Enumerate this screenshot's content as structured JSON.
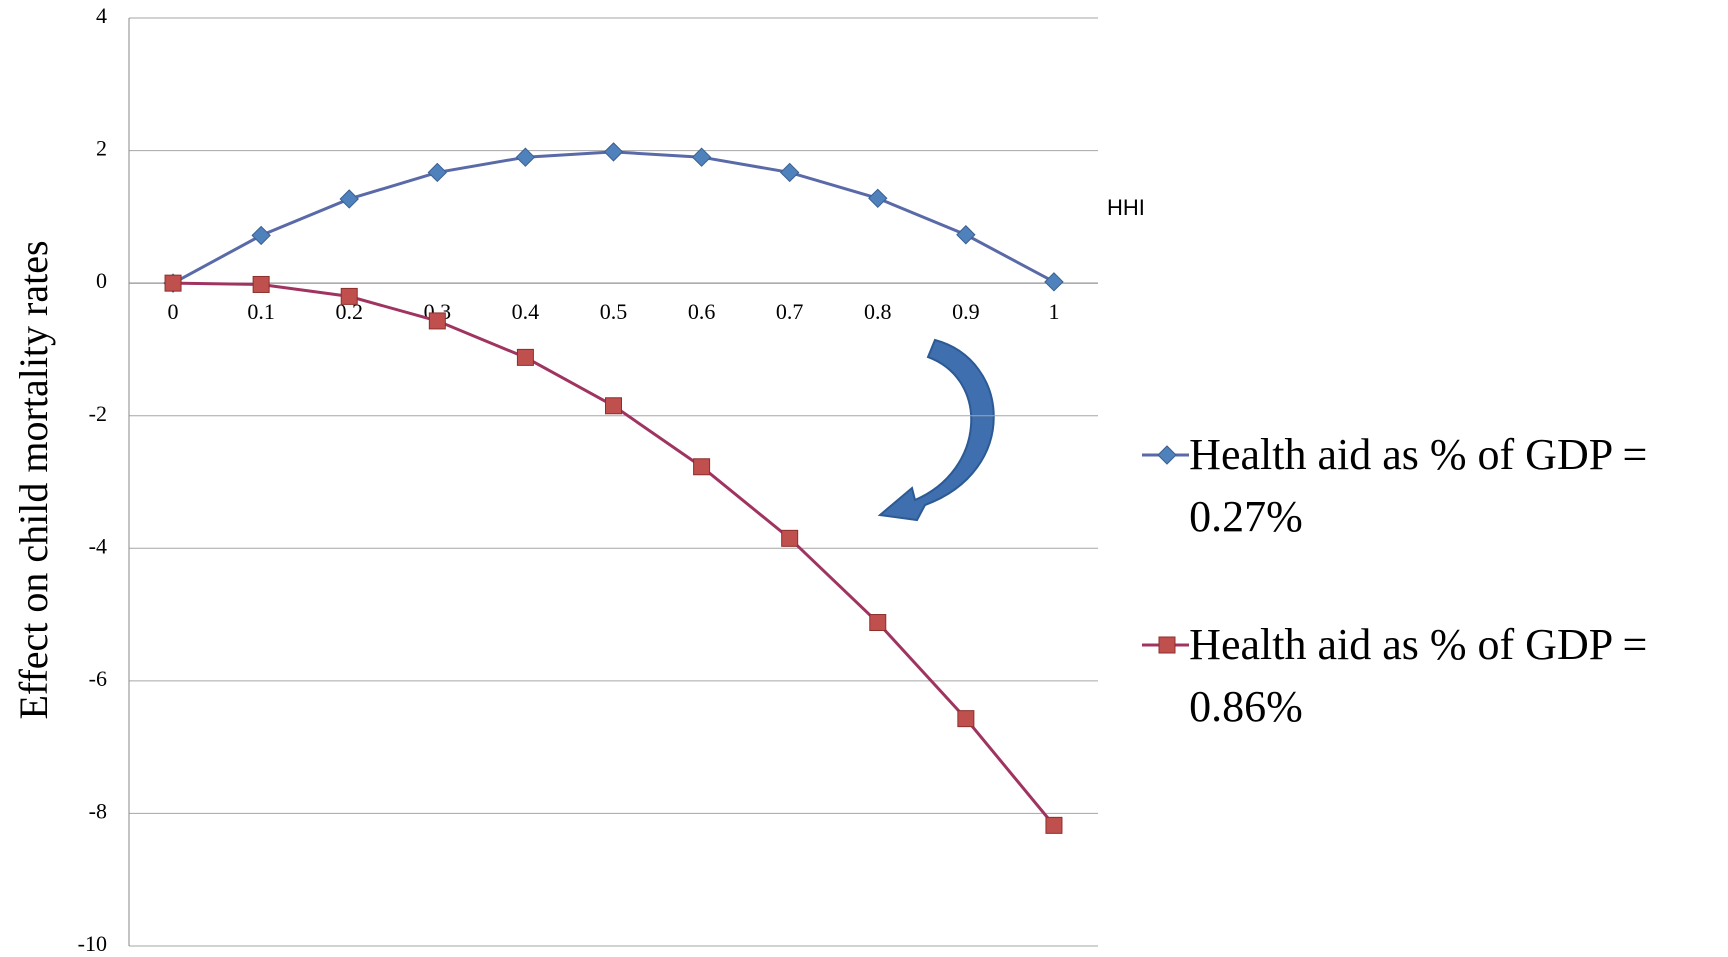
{
  "chart_data": {
    "type": "line",
    "x": [
      0,
      0.1,
      0.2,
      0.3,
      0.4,
      0.5,
      0.6,
      0.7,
      0.8,
      0.9,
      1
    ],
    "x_axis_label": "HHI",
    "y_axis_label": "Effect on child mortality rates",
    "xlim": [
      -0.05,
      1.05
    ],
    "xticks": [
      0,
      0.1,
      0.2,
      0.3,
      0.4,
      0.5,
      0.6,
      0.7,
      0.8,
      0.9,
      1
    ],
    "ylim": [
      -10,
      4
    ],
    "yticks": [
      -10,
      -8,
      -6,
      -4,
      -2,
      0,
      2,
      4
    ],
    "grid": true,
    "legend": "right",
    "series": [
      {
        "name": "Health aid as % of GDP = 0.27%",
        "color": "#4f81bd",
        "line_color": "#5a6aa8",
        "marker": "diamond",
        "values": [
          0,
          0.72,
          1.27,
          1.67,
          1.9,
          1.98,
          1.9,
          1.67,
          1.28,
          0.73,
          0.02
        ]
      },
      {
        "name": "Health aid as % of GDP = 0.86%",
        "color": "#c0504d",
        "line_color": "#a03460",
        "marker": "square",
        "values": [
          0,
          -0.02,
          -0.2,
          -0.57,
          -1.12,
          -1.85,
          -2.77,
          -3.85,
          -5.12,
          -6.57,
          -8.18
        ]
      }
    ]
  }
}
